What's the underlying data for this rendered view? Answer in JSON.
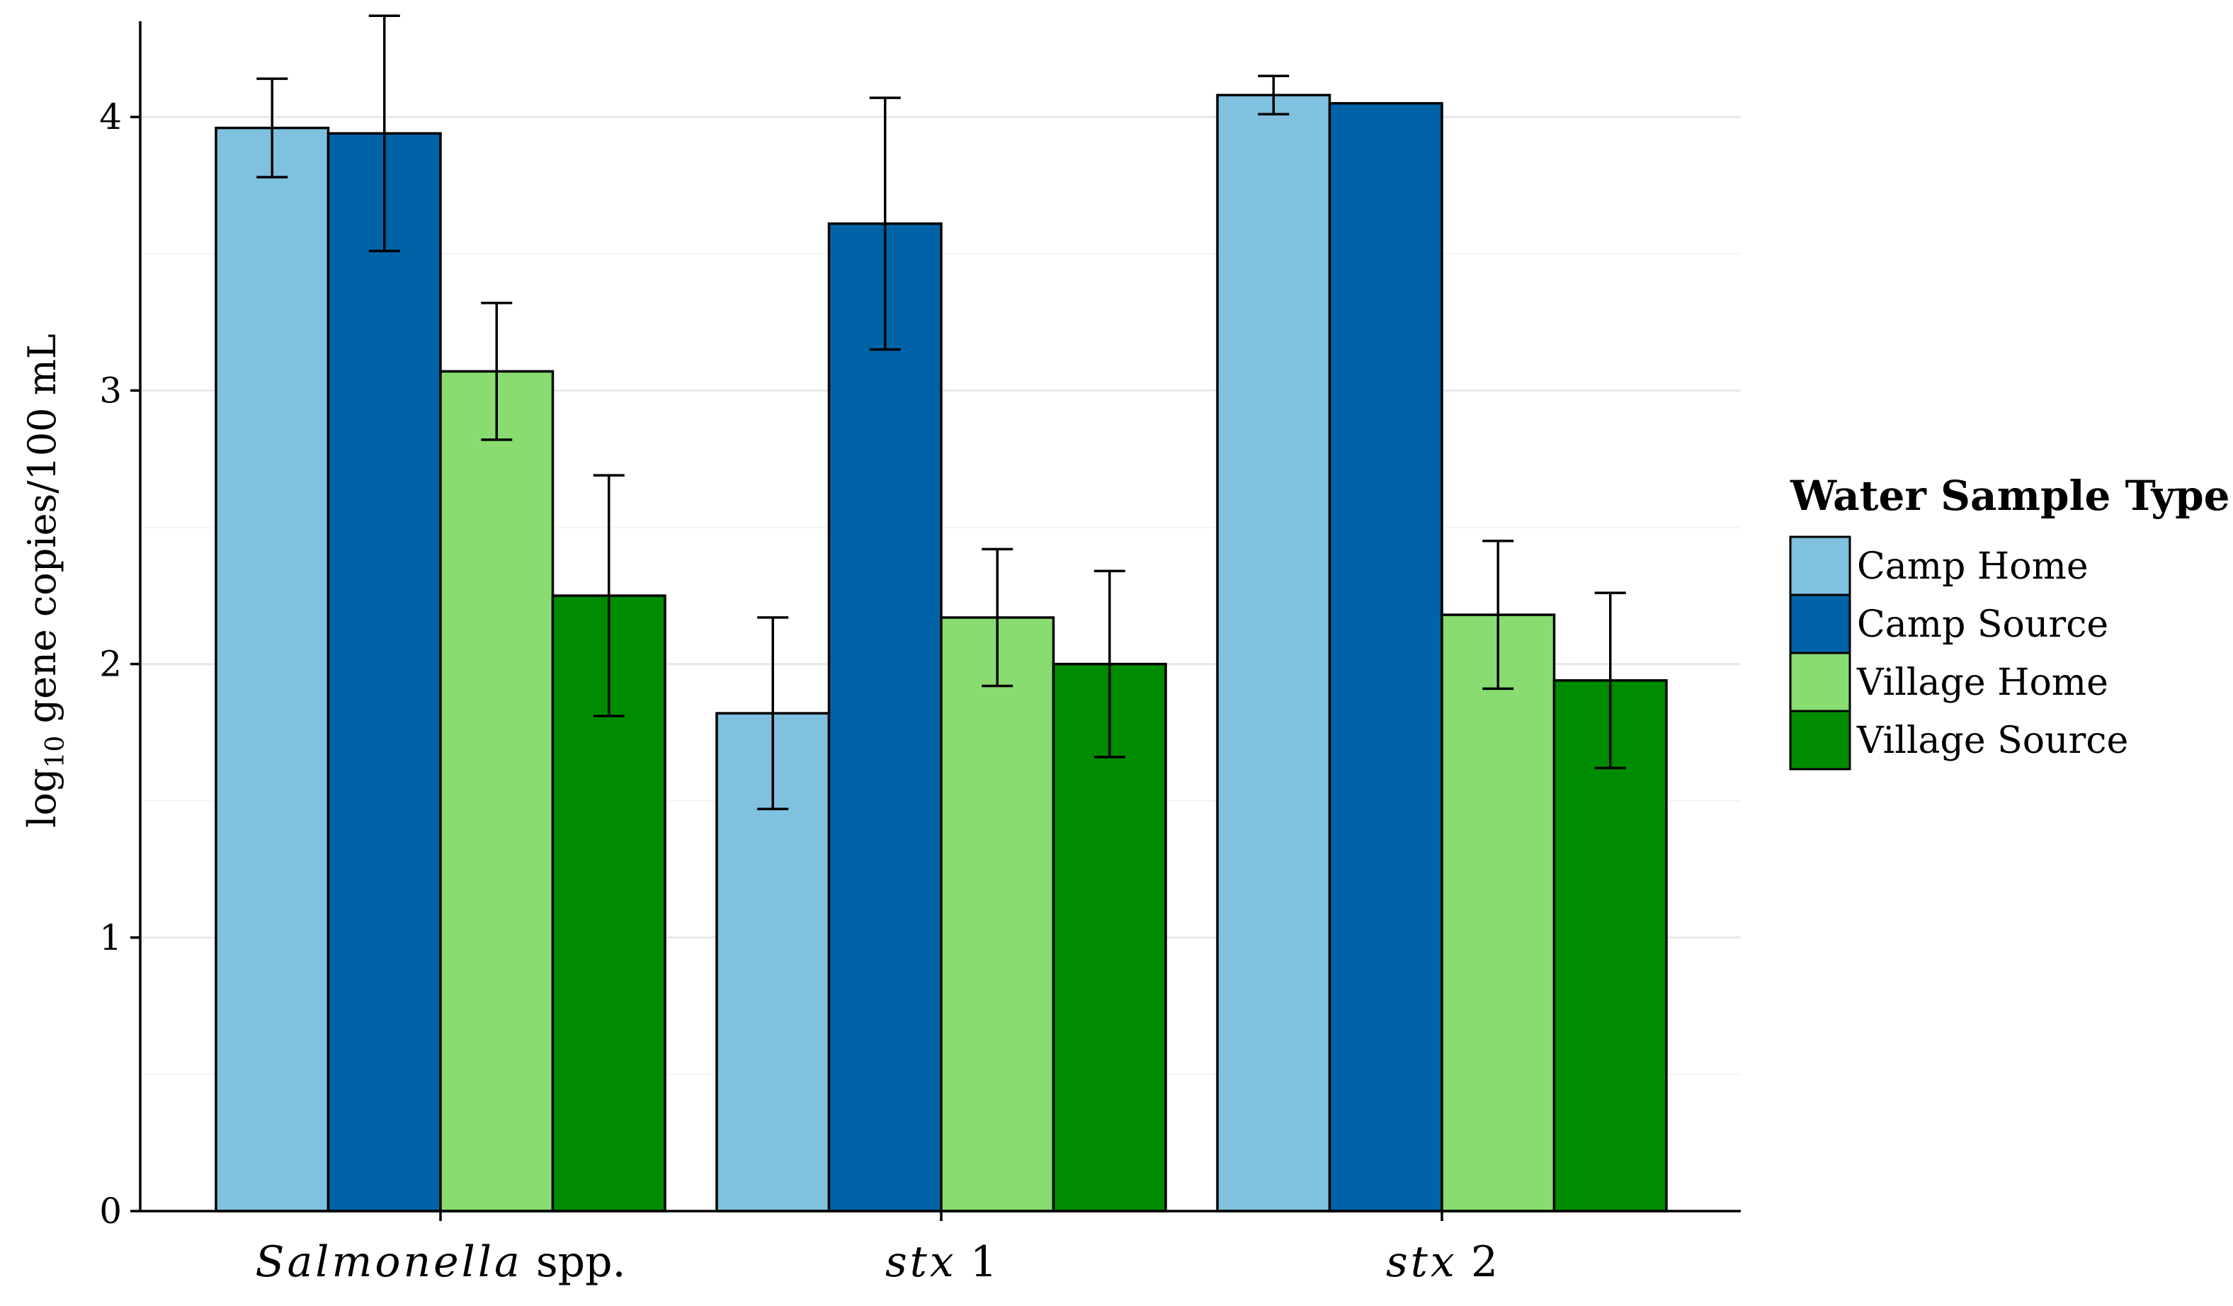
{
  "chart_data": {
    "type": "bar",
    "title": "",
    "xlabel": "",
    "ylabel": "log10 gene copies/100 mL",
    "ylabel_parts": {
      "prefix": "log",
      "subscript": "10",
      "suffix": " gene copies/100 mL"
    },
    "ylim": [
      0,
      4.35
    ],
    "yticks": [
      0,
      1,
      2,
      3,
      4
    ],
    "grid": true,
    "categories": [
      "Salmonella spp.",
      "stx 1",
      "stx 2"
    ],
    "category_parts": [
      {
        "italic": "Salmonella",
        "plain": " spp."
      },
      {
        "italic": "stx",
        "plain": " 1"
      },
      {
        "italic": "stx",
        "plain": " 2"
      }
    ],
    "series": [
      {
        "name": "Camp Home",
        "color": "#7fc1de",
        "values": [
          3.96,
          1.82,
          4.08
        ],
        "errors": [
          0.18,
          0.35,
          0.07
        ]
      },
      {
        "name": "Camp Source",
        "color": "#0063a8",
        "values": [
          3.94,
          3.61,
          4.05
        ],
        "errors": [
          0.43,
          0.46,
          null
        ]
      },
      {
        "name": "Village Home",
        "color": "#88dc70",
        "values": [
          3.07,
          2.17,
          2.18
        ],
        "errors": [
          0.25,
          0.25,
          0.27
        ]
      },
      {
        "name": "Village Source",
        "color": "#008c00",
        "values": [
          2.25,
          2.0,
          1.94
        ],
        "errors": [
          0.44,
          0.34,
          0.32
        ]
      }
    ],
    "legend": {
      "title": "Water Sample Type",
      "position": "right"
    }
  }
}
